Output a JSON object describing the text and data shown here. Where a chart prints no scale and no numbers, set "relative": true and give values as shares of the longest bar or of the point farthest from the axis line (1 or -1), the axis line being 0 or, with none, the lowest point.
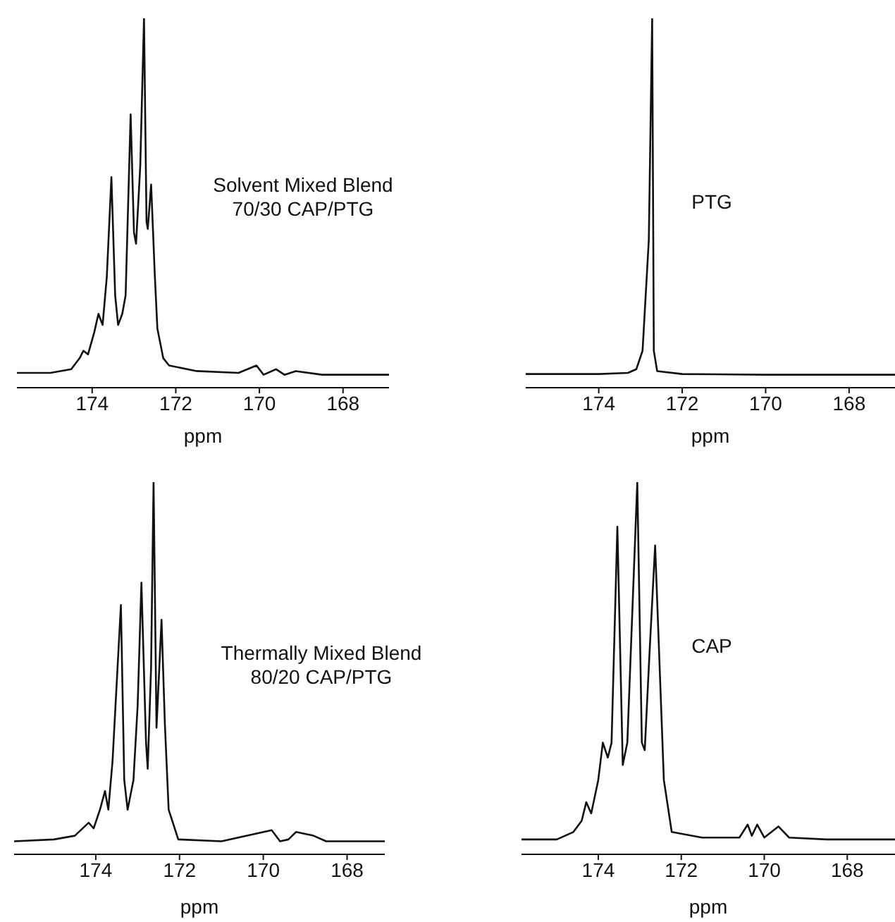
{
  "chart_data": [
    {
      "type": "line",
      "relative": true,
      "xlabel": "ppm",
      "annotations": [
        "Solvent Mixed Blend",
        "70/30 CAP/PTG"
      ],
      "color": "#111111",
      "marker": "none",
      "line_style": "solid",
      "xlim": [
        175.8,
        166.9
      ],
      "xticks": [
        174,
        172,
        170,
        168
      ],
      "x": [
        175.8,
        175,
        174.5,
        174.3,
        174.21,
        174.1,
        173.95,
        173.85,
        173.75,
        173.65,
        173.54,
        173.45,
        173.38,
        173.28,
        173.2,
        173.08,
        173.0,
        172.95,
        172.85,
        172.76,
        172.7,
        172.67,
        172.59,
        172.5,
        172.44,
        172.3,
        172.16,
        171.5,
        170.5,
        170.07,
        169.9,
        169.6,
        169.4,
        169.13,
        168.5,
        167.5,
        166.9
      ],
      "values": [
        0.04,
        0.04,
        0.05,
        0.08,
        0.1,
        0.09,
        0.15,
        0.2,
        0.17,
        0.3,
        0.57,
        0.25,
        0.17,
        0.2,
        0.25,
        0.74,
        0.42,
        0.39,
        0.6,
        1.0,
        0.45,
        0.43,
        0.55,
        0.3,
        0.16,
        0.08,
        0.06,
        0.045,
        0.04,
        0.06,
        0.035,
        0.05,
        0.035,
        0.045,
        0.035,
        0.035,
        0.035
      ]
    },
    {
      "type": "line",
      "relative": true,
      "xlabel": "ppm",
      "annotations": [
        "PTG"
      ],
      "color": "#111111",
      "marker": "none",
      "line_style": "solid",
      "xlim": [
        175.75,
        166.9
      ],
      "xticks": [
        174,
        172,
        170,
        168
      ],
      "x": [
        175.75,
        174,
        173.3,
        173.1,
        172.95,
        172.8,
        172.72,
        172.68,
        172.6,
        172,
        170,
        166.9
      ],
      "values": [
        0.037,
        0.037,
        0.04,
        0.05,
        0.1,
        0.4,
        1.0,
        0.1,
        0.045,
        0.037,
        0.035,
        0.035
      ]
    },
    {
      "type": "line",
      "relative": true,
      "xlabel": "ppm",
      "annotations": [
        "Thermally Mixed Blend",
        "80/20 CAP/PTG"
      ],
      "color": "#111111",
      "marker": "none",
      "line_style": "solid",
      "xlim": [
        175.95,
        167.1
      ],
      "xticks": [
        174,
        172,
        170,
        168
      ],
      "x": [
        175.95,
        175,
        174.5,
        174.17,
        174.05,
        173.9,
        173.78,
        173.7,
        173.6,
        173.4,
        173.32,
        173.24,
        173.1,
        173.0,
        172.91,
        172.8,
        172.76,
        172.68,
        172.62,
        172.55,
        172.43,
        172.35,
        172.26,
        172.03,
        171,
        169.8,
        169.6,
        169.4,
        169.22,
        168.8,
        168.5,
        167.1
      ],
      "values": [
        0.035,
        0.04,
        0.05,
        0.085,
        0.07,
        0.12,
        0.17,
        0.12,
        0.25,
        0.67,
        0.2,
        0.12,
        0.2,
        0.4,
        0.73,
        0.3,
        0.23,
        0.5,
        1.0,
        0.34,
        0.63,
        0.35,
        0.12,
        0.04,
        0.035,
        0.065,
        0.035,
        0.04,
        0.06,
        0.05,
        0.035,
        0.035
      ]
    },
    {
      "type": "line",
      "relative": true,
      "xlabel": "ppm",
      "annotations": [
        "CAP"
      ],
      "color": "#111111",
      "marker": "none",
      "line_style": "solid",
      "xlim": [
        175.85,
        166.85
      ],
      "xticks": [
        174,
        172,
        170,
        168
      ],
      "x": [
        175.85,
        175,
        174.6,
        174.4,
        174.29,
        174.17,
        174.0,
        173.89,
        173.77,
        173.68,
        173.54,
        173.41,
        173.3,
        173.06,
        172.95,
        172.88,
        172.77,
        172.63,
        172.42,
        172.23,
        171.5,
        170.6,
        170.4,
        170.3,
        170.17,
        170.0,
        169.66,
        169.4,
        168.5,
        167.5,
        166.85
      ],
      "values": [
        0.04,
        0.04,
        0.06,
        0.09,
        0.14,
        0.11,
        0.2,
        0.3,
        0.26,
        0.3,
        0.88,
        0.24,
        0.3,
        1.0,
        0.3,
        0.28,
        0.53,
        0.83,
        0.2,
        0.06,
        0.045,
        0.045,
        0.08,
        0.05,
        0.08,
        0.045,
        0.075,
        0.045,
        0.04,
        0.04,
        0.04
      ]
    }
  ]
}
